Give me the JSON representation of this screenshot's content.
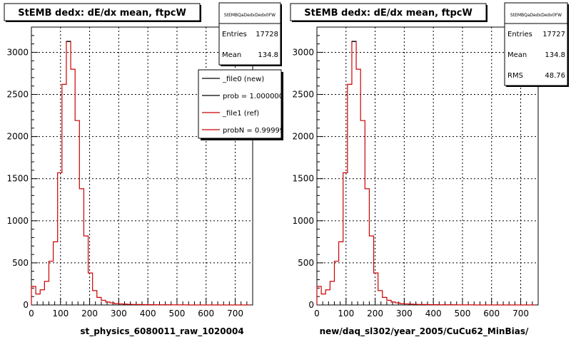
{
  "chart_data": [
    {
      "type": "histogram",
      "title": "StEMB dedx: dE/dx mean, ftpcW",
      "xlabel": "st_physics_6080011_raw_1020004",
      "ylabel": "",
      "xlim": [
        0,
        760
      ],
      "ylim": [
        0,
        3300
      ],
      "xticks": [
        0,
        100,
        200,
        300,
        400,
        500,
        600,
        700
      ],
      "yticks": [
        0,
        500,
        1000,
        1500,
        2000,
        2500,
        3000
      ],
      "grid": true,
      "bin_width": 15,
      "stats_box": {
        "name": "StEMBQaDedxDedx0FW",
        "rows": [
          {
            "label": "Entries",
            "value": "17728"
          },
          {
            "label": "Mean",
            "value": "134.8"
          }
        ]
      },
      "legend": {
        "placement": "top-right",
        "entries": [
          {
            "label": "_file0 (new)",
            "color": "#000000"
          },
          {
            "label": "prob = 1.000000",
            "color": "#000000"
          },
          {
            "label": "_file1 (ref)",
            "color": "#cc0000"
          },
          {
            "label": "probN = 0.999999",
            "color": "#cc0000"
          }
        ]
      },
      "series": [
        {
          "color": "#cc0000",
          "values": [
            220,
            130,
            180,
            280,
            520,
            750,
            1570,
            2620,
            3130,
            2800,
            2190,
            1380,
            820,
            380,
            170,
            90,
            55,
            35,
            25,
            15,
            12,
            10,
            8,
            6,
            5,
            4,
            3,
            3,
            2,
            2,
            2,
            2,
            1,
            1,
            1,
            1,
            0,
            0,
            0,
            0,
            0,
            0,
            0,
            0,
            0,
            0,
            0,
            0,
            0,
            0
          ]
        }
      ]
    },
    {
      "type": "histogram",
      "title": "StEMB dedx: dE/dx mean, ftpcW",
      "xlabel": "new/daq_sl302/year_2005/CuCu62_MinBias/",
      "ylabel": "",
      "xlim": [
        0,
        760
      ],
      "ylim": [
        0,
        3300
      ],
      "xticks": [
        0,
        100,
        200,
        300,
        400,
        500,
        600,
        700
      ],
      "yticks": [
        0,
        500,
        1000,
        1500,
        2000,
        2500,
        3000
      ],
      "grid": true,
      "bin_width": 15,
      "stats_box": {
        "name": "StEMBQaDedxDedx0FW",
        "rows": [
          {
            "label": "Entries",
            "value": "17727"
          },
          {
            "label": "Mean",
            "value": "134.8"
          },
          {
            "label": "RMS",
            "value": "48.76"
          }
        ]
      },
      "series": [
        {
          "color": "#cc0000",
          "values": [
            220,
            130,
            180,
            280,
            520,
            750,
            1570,
            2620,
            3130,
            2800,
            2190,
            1380,
            820,
            380,
            170,
            90,
            55,
            35,
            25,
            15,
            12,
            10,
            8,
            6,
            5,
            4,
            3,
            3,
            2,
            2,
            2,
            2,
            1,
            1,
            1,
            1,
            0,
            0,
            0,
            0,
            0,
            0,
            0,
            0,
            0,
            0,
            0,
            0,
            0,
            0
          ]
        }
      ]
    }
  ]
}
